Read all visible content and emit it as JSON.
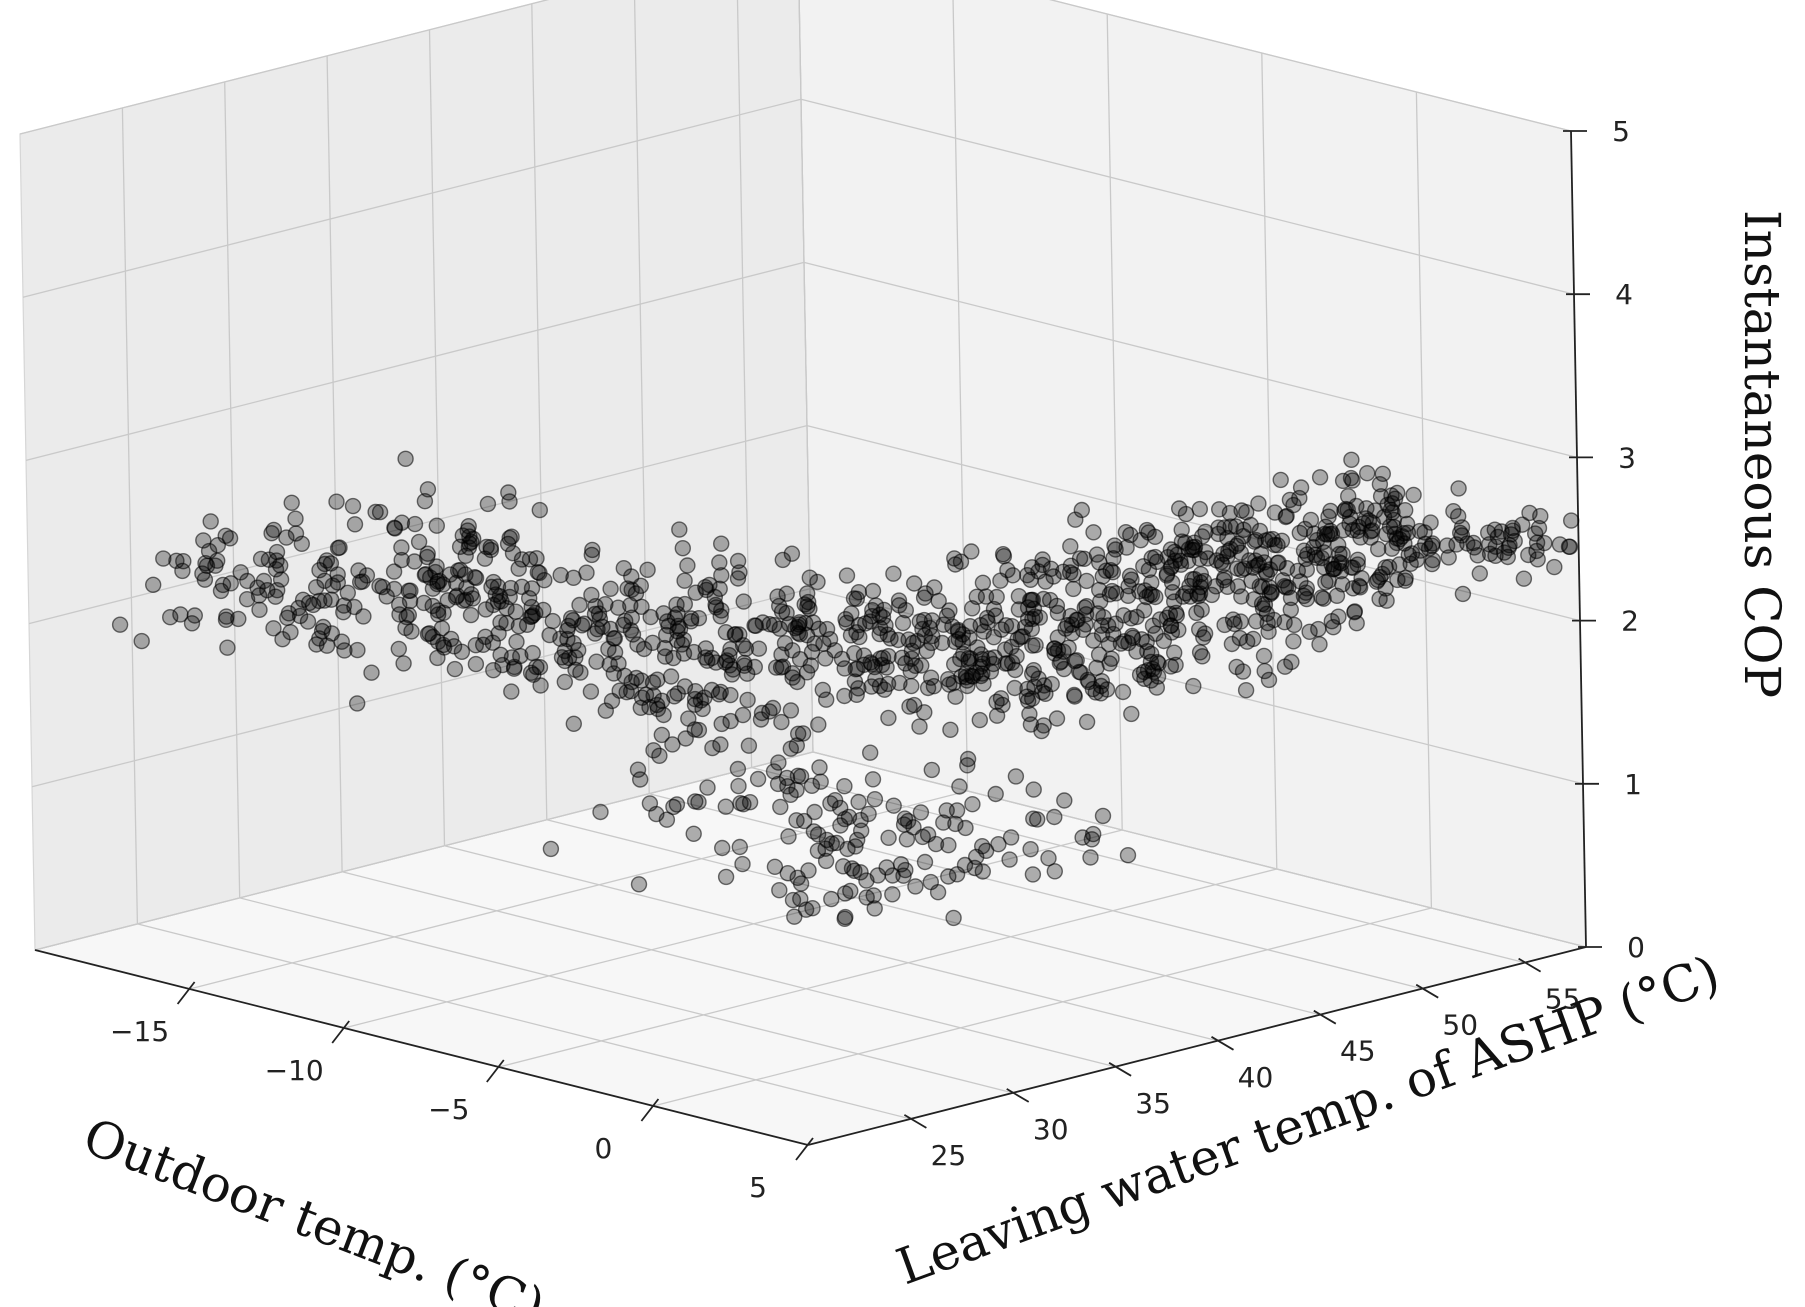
{
  "chart_data": {
    "type": "scatter3d",
    "x_axis": {
      "label": "Outdoor temp. (°C)",
      "ticks": [
        -15,
        -10,
        -5,
        0,
        5
      ],
      "tick_labels": [
        "−15",
        "−10",
        "−5",
        "0",
        "5"
      ],
      "range": [
        -20,
        5
      ]
    },
    "y_axis": {
      "label": "Leaving water temp. of ASHP (°C)",
      "ticks": [
        25,
        30,
        35,
        40,
        45,
        50,
        55
      ],
      "tick_labels": [
        "25",
        "30",
        "35",
        "40",
        "45",
        "50",
        "55"
      ],
      "range": [
        20,
        58
      ]
    },
    "z_axis": {
      "label": "Instantaneous  COP",
      "ticks": [
        0,
        1,
        2,
        3,
        4,
        5
      ],
      "tick_labels": [
        "0",
        "1",
        "2",
        "3",
        "4",
        "5"
      ],
      "range": [
        0,
        5
      ]
    },
    "grid": true,
    "colors": {
      "points": "#000000",
      "pane_back": "#f2f2f2",
      "pane_side": "#ebebeb",
      "floor": "#f7f7f7"
    },
    "clusters": [
      {
        "x": [
          -19,
          -10
        ],
        "y": [
          22,
          36
        ],
        "z": [
          1.7,
          2.7
        ],
        "n": 220
      },
      {
        "x": [
          -13,
          -3
        ],
        "y": [
          28,
          42
        ],
        "z": [
          1.4,
          2.5
        ],
        "n": 300
      },
      {
        "x": [
          -6,
          2
        ],
        "y": [
          35,
          52
        ],
        "z": [
          1.5,
          2.6
        ],
        "n": 380
      },
      {
        "x": [
          -2,
          5
        ],
        "y": [
          44,
          58
        ],
        "z": [
          2.2,
          2.8
        ],
        "n": 300
      },
      {
        "x": [
          -8,
          3
        ],
        "y": [
          26,
          40
        ],
        "z": [
          0.8,
          1.6
        ],
        "n": 120
      },
      {
        "x": [
          1,
          5
        ],
        "y": [
          22,
          32
        ],
        "z": [
          1.0,
          1.8
        ],
        "n": 40
      }
    ]
  }
}
